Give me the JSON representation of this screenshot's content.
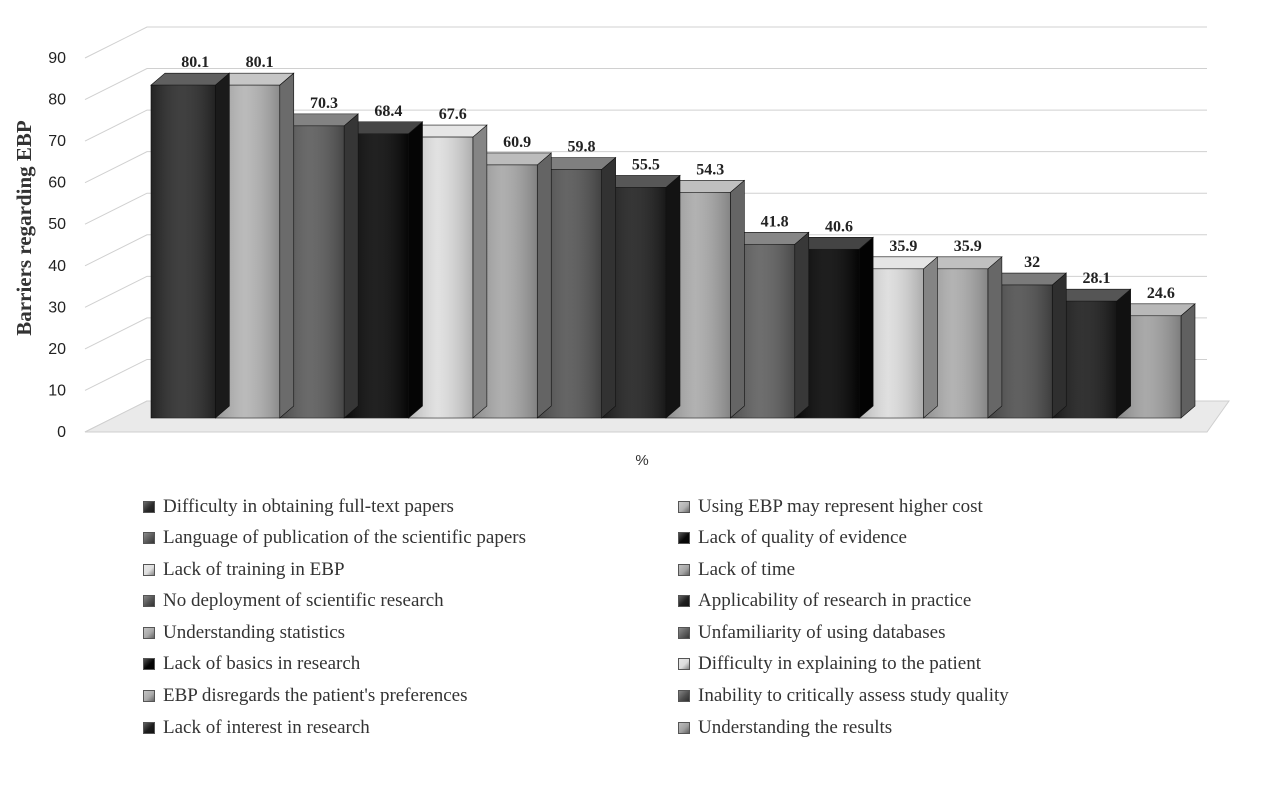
{
  "chart_data": {
    "type": "bar",
    "style": "3d-columns",
    "ylabel": "Barriers regarding EBP",
    "xlabel": "%",
    "ylim": [
      0,
      90
    ],
    "yticks": [
      0,
      10,
      20,
      30,
      40,
      50,
      60,
      70,
      80,
      90
    ],
    "grid": true,
    "legend_position": "bottom",
    "series": [
      {
        "name": "Difficulty in obtaining full-text papers",
        "value": 80.1,
        "label": "80.1",
        "color": "#2b2b2b"
      },
      {
        "name": "Using EBP may represent higher cost",
        "value": 80.1,
        "label": "80.1",
        "color": "#b3b3b3"
      },
      {
        "name": "Language of publication of the scientific papers",
        "value": 70.3,
        "label": "70.3",
        "color": "#5a5a5a"
      },
      {
        "name": "Lack of quality of evidence",
        "value": 68.4,
        "label": "68.4",
        "color": "#080808"
      },
      {
        "name": "Lack of training in EBP",
        "value": 67.6,
        "label": "67.6",
        "color": "#dedede"
      },
      {
        "name": "Lack of time",
        "value": 60.9,
        "label": "60.9",
        "color": "#a6a6a6"
      },
      {
        "name": "No deployment of scientific research",
        "value": 59.8,
        "label": "59.8",
        "color": "#545454"
      },
      {
        "name": "Applicability of research in practice",
        "value": 55.5,
        "label": "55.5",
        "color": "#1f1f1f"
      },
      {
        "name": "Understanding statistics",
        "value": 54.3,
        "label": "54.3",
        "color": "#a9a9a9"
      },
      {
        "name": "Unfamiliarity of using databases",
        "value": 41.8,
        "label": "41.8",
        "color": "#5e5e5e"
      },
      {
        "name": "Lack of basics in research",
        "value": 40.6,
        "label": "40.6",
        "color": "#050505"
      },
      {
        "name": "Difficulty in explaining to the patient",
        "value": 35.9,
        "label": "35.9",
        "color": "#dcdcdc"
      },
      {
        "name": "EBP disregards the patient's preferences",
        "value": 35.9,
        "label": "35.9",
        "color": "#ababab"
      },
      {
        "name": "Inability to critically assess study quality",
        "value": 32,
        "label": "32",
        "color": "#4f4f4f"
      },
      {
        "name": "Lack of interest in research",
        "value": 28.1,
        "label": "28.1",
        "color": "#1c1c1c"
      },
      {
        "name": "Understanding the results",
        "value": 24.6,
        "label": "24.6",
        "color": "#a0a0a0"
      }
    ]
  }
}
